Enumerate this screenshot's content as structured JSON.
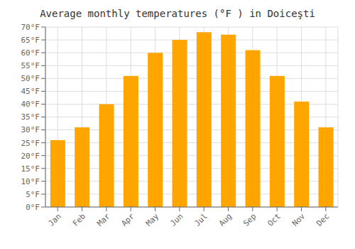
{
  "chart_data": {
    "type": "bar",
    "title": "Average monthly temperatures (°F ) in Doiceşti",
    "categories": [
      "Jan",
      "Feb",
      "Mar",
      "Apr",
      "May",
      "Jun",
      "Jul",
      "Aug",
      "Sep",
      "Oct",
      "Nov",
      "Dec"
    ],
    "values": [
      26,
      31,
      40,
      51,
      60,
      65,
      68,
      67,
      61,
      51,
      41,
      31
    ],
    "color": "#FFA500",
    "ylim": [
      0,
      70
    ],
    "yticks": [
      {
        "value": 0,
        "label": "0°F"
      },
      {
        "value": 5,
        "label": "5°F"
      },
      {
        "value": 10,
        "label": "10°F"
      },
      {
        "value": 15,
        "label": "15°F"
      },
      {
        "value": 20,
        "label": "20°F"
      },
      {
        "value": 25,
        "label": "25°F"
      },
      {
        "value": 30,
        "label": "30°F"
      },
      {
        "value": 35,
        "label": "35°F"
      },
      {
        "value": 40,
        "label": "40°F"
      },
      {
        "value": 45,
        "label": "45°F"
      },
      {
        "value": 50,
        "label": "50°F"
      },
      {
        "value": 55,
        "label": "55°F"
      },
      {
        "value": 60,
        "label": "60°F"
      },
      {
        "value": 65,
        "label": "65°F"
      },
      {
        "value": 70,
        "label": "70°F"
      }
    ],
    "grid": true
  }
}
